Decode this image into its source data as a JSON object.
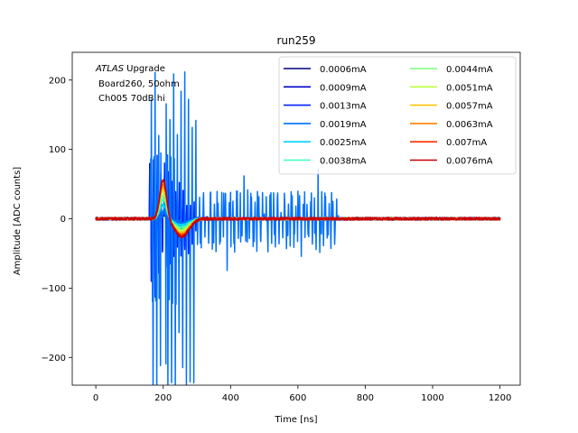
{
  "chart_data": {
    "type": "line",
    "title": "run259",
    "xlabel": "Time [ns]",
    "ylabel": "Amplitude [ADC counts]",
    "xlim": [
      -70,
      1260
    ],
    "ylim": [
      -240,
      240
    ],
    "xticks": [
      0,
      200,
      400,
      600,
      800,
      1000,
      1200
    ],
    "yticks": [
      -200,
      -100,
      0,
      100,
      200
    ],
    "grid": false,
    "legend_position": "top-right",
    "legend_columns": 2,
    "annotation": {
      "prefix_italic": "ATLAS",
      "prefix_rest": " Upgrade",
      "line2": "Board260, 50ohm",
      "line3": "Ch005 70dB hi"
    },
    "series": [
      {
        "name": "0.0006mA",
        "color": "#00007f",
        "mode": "spike",
        "spikeStart": 160,
        "spikeEnd": 270,
        "spikeMax": 60,
        "pulsePeak": 5,
        "noise": 2
      },
      {
        "name": "0.0009mA",
        "color": "#0000c8",
        "mode": "spike",
        "spikeStart": 160,
        "spikeEnd": 280,
        "spikeMax": 90,
        "pulsePeak": 6,
        "noise": 2
      },
      {
        "name": "0.0013mA",
        "color": "#0020ff",
        "mode": "spike",
        "spikeStart": 160,
        "spikeEnd": 300,
        "spikeMax": 110,
        "pulsePeak": 8,
        "noise": 2
      },
      {
        "name": "0.0019mA",
        "color": "#0070ff",
        "mode": "train",
        "spikeStart": 165,
        "spikeEnd": 720,
        "spikeMax": 220,
        "pulsePeak": 10,
        "noise": 2
      },
      {
        "name": "0.0025mA",
        "color": "#00d4ff",
        "mode": "pulse",
        "pulsePeak": 20,
        "noise": 1.5
      },
      {
        "name": "0.0038mA",
        "color": "#3dffba",
        "mode": "pulse",
        "pulsePeak": 28,
        "noise": 1.5
      },
      {
        "name": "0.0044mA",
        "color": "#7aff7a",
        "mode": "pulse",
        "pulsePeak": 34,
        "noise": 1.5
      },
      {
        "name": "0.0051mA",
        "color": "#baff3d",
        "mode": "pulse",
        "pulsePeak": 40,
        "noise": 1.5
      },
      {
        "name": "0.0057mA",
        "color": "#ffc400",
        "mode": "pulse",
        "pulsePeak": 45,
        "noise": 1.5
      },
      {
        "name": "0.0063mA",
        "color": "#ff8000",
        "mode": "pulse",
        "pulsePeak": 50,
        "noise": 1.5
      },
      {
        "name": "0.007mA",
        "color": "#ff2d00",
        "mode": "pulse",
        "pulsePeak": 54,
        "noise": 1.8
      },
      {
        "name": "0.0076mA",
        "color": "#c80000",
        "mode": "pulse",
        "pulsePeak": 57,
        "noise": 2
      }
    ]
  }
}
